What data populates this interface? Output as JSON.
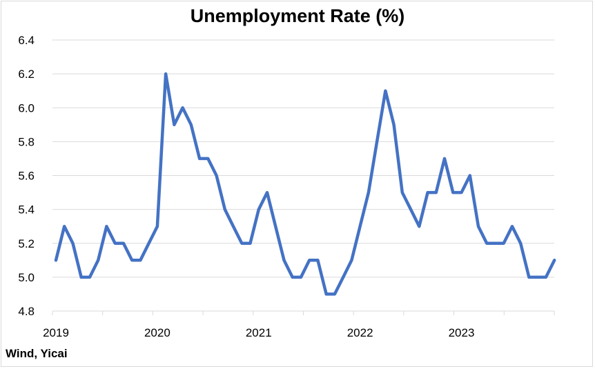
{
  "source_label": "Wind, Yicai",
  "chart_data": {
    "type": "line",
    "title": "Unemployment Rate (%)",
    "xlabel": "",
    "ylabel": "",
    "ylim": [
      4.8,
      6.4
    ],
    "yticks": [
      "4.8",
      "5.0",
      "5.2",
      "5.4",
      "5.6",
      "5.8",
      "6.0",
      "6.2",
      "6.4"
    ],
    "xtick_labels": [
      "2019",
      "2020",
      "2021",
      "2022",
      "2023"
    ],
    "grid": true,
    "legend": "none",
    "line_color": "#4472C4",
    "series": [
      {
        "x": [
          "2019-01",
          "2019-02",
          "2019-03",
          "2019-04",
          "2019-05",
          "2019-06",
          "2019-07",
          "2019-08",
          "2019-09",
          "2019-10",
          "2019-11",
          "2019-12",
          "2020-01",
          "2020-02",
          "2020-03",
          "2020-04",
          "2020-05",
          "2020-06",
          "2020-07",
          "2020-08",
          "2020-09",
          "2020-10",
          "2020-11",
          "2020-12",
          "2021-01",
          "2021-02",
          "2021-03",
          "2021-04",
          "2021-05",
          "2021-06",
          "2021-07",
          "2021-08",
          "2021-09",
          "2021-10",
          "2021-11",
          "2021-12",
          "2022-01",
          "2022-02",
          "2022-03",
          "2022-04",
          "2022-05",
          "2022-06",
          "2022-07",
          "2022-08",
          "2022-09",
          "2022-10",
          "2022-11",
          "2022-12",
          "2023-01",
          "2023-02",
          "2023-03",
          "2023-04",
          "2023-05",
          "2023-06",
          "2023-07",
          "2023-08",
          "2023-09",
          "2023-10",
          "2023-11",
          "2023-12"
        ],
        "values": [
          5.1,
          5.3,
          5.2,
          5.0,
          5.0,
          5.1,
          5.3,
          5.2,
          5.2,
          5.1,
          5.1,
          5.2,
          5.3,
          6.2,
          5.9,
          6.0,
          5.9,
          5.7,
          5.7,
          5.6,
          5.4,
          5.3,
          5.2,
          5.2,
          5.4,
          5.5,
          5.3,
          5.1,
          5.0,
          5.0,
          5.1,
          5.1,
          4.9,
          4.9,
          5.0,
          5.1,
          5.3,
          5.5,
          5.8,
          6.1,
          5.9,
          5.5,
          5.4,
          5.3,
          5.5,
          5.5,
          5.7,
          5.5,
          5.5,
          5.6,
          5.3,
          5.2,
          5.2,
          5.2,
          5.3,
          5.2,
          5.0,
          5.0,
          5.0,
          5.1
        ]
      }
    ]
  }
}
